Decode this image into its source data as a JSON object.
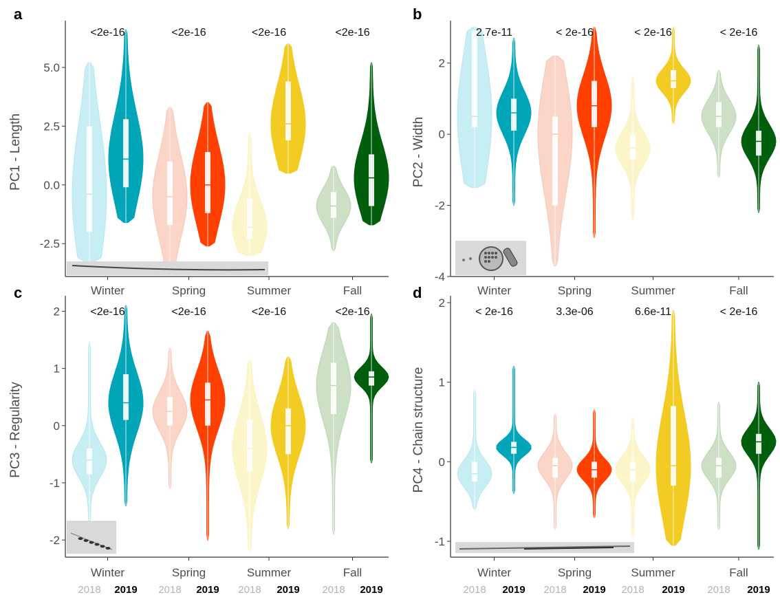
{
  "chart_data": [
    {
      "panel": "a",
      "type": "violin",
      "ylabel": "PC1 - Length",
      "ylim": [
        -3.9,
        6.7
      ],
      "yticks": [
        -2.5,
        0.0,
        2.5,
        5.0
      ],
      "ytick_labels": [
        "-2.5",
        "0.0",
        "2.5",
        "5.0"
      ],
      "categories": [
        "Winter",
        "Spring",
        "Summer",
        "Fall"
      ],
      "pvalues": [
        "<2e-16",
        "<2e-16",
        "<2e-16",
        "<2e-16"
      ],
      "inset": "elongated-cell-micrograph",
      "series": [
        {
          "name": "2018",
          "values": [
            {
              "min": -3.3,
              "q1": -2.0,
              "median": -0.4,
              "q3": 2.5,
              "max": 5.2
            },
            {
              "min": -3.5,
              "q1": -1.7,
              "median": -0.5,
              "q3": 1.0,
              "max": 3.3
            },
            {
              "min": -3.0,
              "q1": -2.3,
              "median": -1.8,
              "q3": -0.6,
              "max": 2.2
            },
            {
              "min": -2.8,
              "q1": -1.4,
              "median": -0.9,
              "q3": -0.3,
              "max": 0.8
            }
          ]
        },
        {
          "name": "2019",
          "values": [
            {
              "min": -1.6,
              "q1": -0.1,
              "median": 1.1,
              "q3": 2.8,
              "max": 6.6
            },
            {
              "min": -2.6,
              "q1": -1.2,
              "median": 0.0,
              "q3": 1.4,
              "max": 3.5
            },
            {
              "min": 0.5,
              "q1": 1.9,
              "median": 2.6,
              "q3": 4.4,
              "max": 6.0
            },
            {
              "min": -1.7,
              "q1": -0.9,
              "median": 0.3,
              "q3": 1.3,
              "max": 5.2
            }
          ]
        }
      ]
    },
    {
      "panel": "b",
      "type": "violin",
      "ylabel": "PC2 - Width",
      "ylim": [
        -4.0,
        3.0
      ],
      "yticks": [
        -4,
        -2,
        0,
        2
      ],
      "ytick_labels": [
        "-4",
        "-2",
        "0",
        "2"
      ],
      "categories": [
        "Winter",
        "Spring",
        "Summer",
        "Fall"
      ],
      "pvalues": [
        "2.7e-11",
        "< 2e-16",
        "< 2e-16",
        "< 2e-16"
      ],
      "inset": "round-and-oblong-cell-micrograph",
      "series": [
        {
          "name": "2018",
          "values": [
            {
              "min": -1.5,
              "q1": 0.2,
              "median": 0.5,
              "q3": 2.9,
              "max": 3.0
            },
            {
              "min": -3.7,
              "q1": -2.0,
              "median": 0.0,
              "q3": 0.5,
              "max": 2.2
            },
            {
              "min": -2.4,
              "q1": -0.7,
              "median": -0.4,
              "q3": 0.0,
              "max": 1.6
            },
            {
              "min": -1.2,
              "q1": 0.2,
              "median": 0.5,
              "q3": 0.9,
              "max": 1.8
            }
          ]
        },
        {
          "name": "2019",
          "values": [
            {
              "min": -2.0,
              "q1": 0.1,
              "median": 0.6,
              "q3": 1.0,
              "max": 2.7
            },
            {
              "min": -2.9,
              "q1": 0.2,
              "median": 0.8,
              "q3": 1.5,
              "max": 3.0
            },
            {
              "min": 0.3,
              "q1": 1.3,
              "median": 1.5,
              "q3": 1.8,
              "max": 3.0
            },
            {
              "min": -2.2,
              "q1": -0.6,
              "median": -0.2,
              "q3": 0.1,
              "max": 2.5
            }
          ]
        }
      ]
    },
    {
      "panel": "c",
      "type": "violin",
      "ylabel": "PC3 - Regularity",
      "ylim": [
        -2.3,
        2.15
      ],
      "yticks": [
        -2,
        -1,
        0,
        1,
        2
      ],
      "ytick_labels": [
        "-2",
        "-1",
        "0",
        "1",
        "2"
      ],
      "categories": [
        "Winter",
        "Spring",
        "Summer",
        "Fall"
      ],
      "pvalues": [
        "<2e-16",
        "<2e-16",
        "<2e-16",
        "<2e-16"
      ],
      "inset": "chain-cell-micrograph",
      "series": [
        {
          "name": "2018",
          "values": [
            {
              "min": -1.7,
              "q1": -0.85,
              "median": -0.6,
              "q3": -0.4,
              "max": 1.45
            },
            {
              "min": -1.1,
              "q1": 0.0,
              "median": 0.25,
              "q3": 0.5,
              "max": 1.35
            },
            {
              "min": -2.2,
              "q1": -0.8,
              "median": -0.4,
              "q3": 0.1,
              "max": 1.15
            },
            {
              "min": -1.9,
              "q1": 0.2,
              "median": 0.7,
              "q3": 1.1,
              "max": 1.8
            }
          ]
        },
        {
          "name": "2019",
          "values": [
            {
              "min": -1.4,
              "q1": 0.1,
              "median": 0.4,
              "q3": 0.9,
              "max": 2.1
            },
            {
              "min": -2.0,
              "q1": 0.0,
              "median": 0.45,
              "q3": 0.75,
              "max": 1.65
            },
            {
              "min": -1.8,
              "q1": -0.5,
              "median": 0.0,
              "q3": 0.3,
              "max": 1.2
            },
            {
              "min": -0.65,
              "q1": 0.7,
              "median": 0.85,
              "q3": 0.95,
              "max": 1.95
            }
          ]
        }
      ]
    },
    {
      "panel": "d",
      "type": "violin",
      "ylabel": "PC4 - Chain structure",
      "ylim": [
        -1.2,
        2.0
      ],
      "yticks": [
        -1,
        0,
        1,
        2
      ],
      "ytick_labels": [
        "-1",
        "0",
        "1",
        "2"
      ],
      "categories": [
        "Winter",
        "Spring",
        "Summer",
        "Fall"
      ],
      "pvalues": [
        "< 2e-16",
        "3.3e-06",
        "6.6e-11",
        "< 2e-16"
      ],
      "inset": "long-chain-micrograph",
      "series": [
        {
          "name": "2018",
          "values": [
            {
              "min": -0.6,
              "q1": -0.25,
              "median": -0.15,
              "q3": 0.0,
              "max": 0.9
            },
            {
              "min": -0.85,
              "q1": -0.2,
              "median": -0.05,
              "q3": 0.05,
              "max": 0.6
            },
            {
              "min": -0.95,
              "q1": -0.25,
              "median": -0.1,
              "q3": 0.0,
              "max": 0.55
            },
            {
              "min": -0.85,
              "q1": -0.2,
              "median": -0.05,
              "q3": 0.05,
              "max": 0.75
            }
          ]
        },
        {
          "name": "2019",
          "values": [
            {
              "min": -0.4,
              "q1": 0.1,
              "median": 0.18,
              "q3": 0.25,
              "max": 1.2
            },
            {
              "min": -0.7,
              "q1": -0.2,
              "median": -0.1,
              "q3": 0.0,
              "max": 0.65
            },
            {
              "min": -1.05,
              "q1": -0.3,
              "median": -0.05,
              "q3": 0.7,
              "max": 1.9
            },
            {
              "min": -1.1,
              "q1": 0.1,
              "median": 0.25,
              "q3": 0.35,
              "max": 1.0
            }
          ]
        }
      ]
    }
  ],
  "year_labels": [
    "2018",
    "2019"
  ],
  "colors": {
    "Winter": {
      "2018": "#b3e8ef",
      "2019": "#00a5b8"
    },
    "Spring": {
      "2018": "#f8c7b5",
      "2019": "#ff4000"
    },
    "Summer": {
      "2018": "#fbf2b8",
      "2019": "#f2cc22"
    },
    "Fall": {
      "2018": "#b9d6b0",
      "2019": "#005e0c"
    }
  }
}
